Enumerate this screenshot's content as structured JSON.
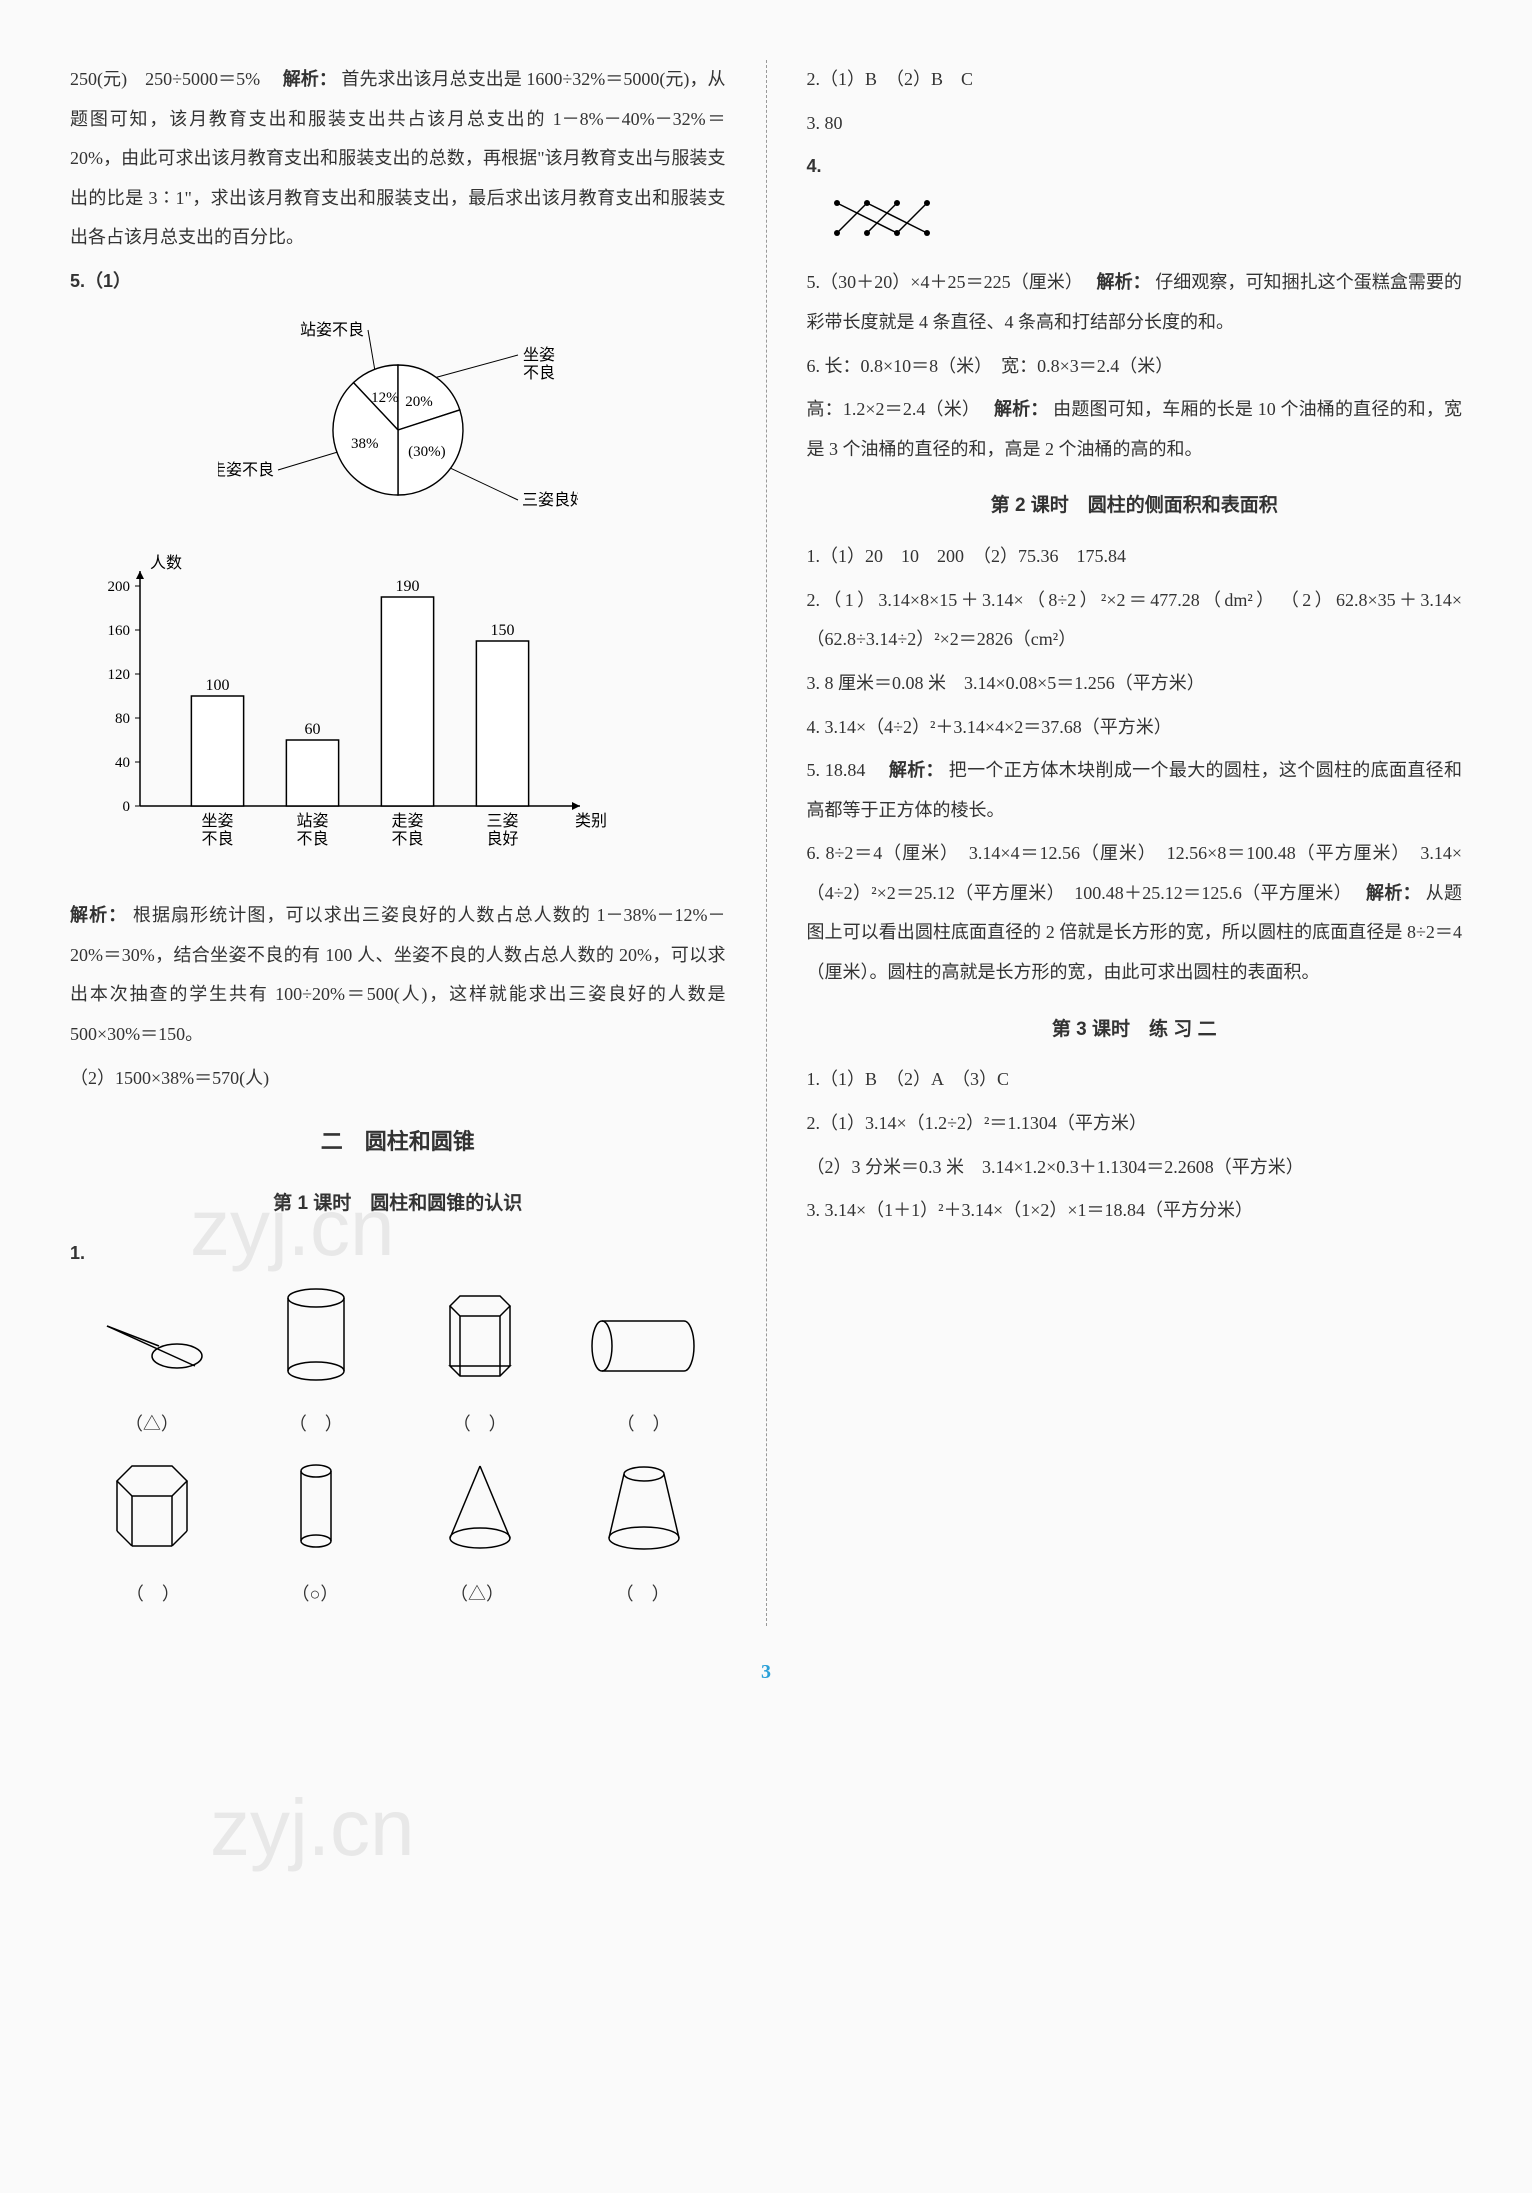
{
  "left": {
    "p1": "250(元)　250÷5000＝5%　",
    "p1_bold": "解析：",
    "p1_rest": "首先求出该月总支出是 1600÷32%＝5000(元)，从题图可知，该月教育支出和服装支出共占该月总支出的 1－8%－40%－32%＝20%，由此可求出该月教育支出和服装支出的总数，再根据\"该月教育支出与服装支出的比是 3∶1\"，求出该月教育支出和服装支出，最后求出该月教育支出和服装支出各占该月总支出的百分比。",
    "q5": "5.（1）",
    "pie": {
      "labels": {
        "zhan_bl": "站姿不良",
        "zuo_bl": "坐姿不良",
        "zou_bl": "走姿不良",
        "san_lh": "三姿良好"
      },
      "slices": [
        {
          "label": "站姿不良",
          "pct": "12%",
          "start": 90,
          "end": 133.2,
          "color": "#ffffff"
        },
        {
          "label": "坐姿不良",
          "pct": "20%",
          "start": 18,
          "end": 90,
          "color": "#ffffff"
        },
        {
          "label": "三姿良好",
          "pct": "(30%)",
          "start": -90,
          "end": 18,
          "color": "#ffffff"
        },
        {
          "label": "走姿不良",
          "pct": "38%",
          "start": 133.2,
          "end": 270,
          "color": "#ffffff"
        }
      ]
    },
    "bar": {
      "ylabel": "人数",
      "xlabel": "类别",
      "ymax": 200,
      "ystep": 40,
      "yticks": [
        0,
        40,
        80,
        120,
        160,
        200
      ],
      "categories": [
        "坐姿\n不良",
        "站姿\n不良",
        "走姿\n不良",
        "三姿\n良好"
      ],
      "values": [
        100,
        60,
        190,
        150
      ],
      "bar_color": "#ffffff",
      "bar_border": "#000000",
      "value_labels": [
        "100",
        "60",
        "190",
        "150"
      ]
    },
    "p_analysis_bold": "解析：",
    "p_analysis": "根据扇形统计图，可以求出三姿良好的人数占总人数的 1－38%－12%－20%＝30%，结合坐姿不良的有 100 人、坐姿不良的人数占总人数的 20%，可以求出本次抽查的学生共有 100÷20%＝500(人)，这样就能求出三姿良好的人数是 500×30%＝150。",
    "p_5_2": "（2）1500×38%＝570(人)",
    "heading_two": "二　圆柱和圆锥",
    "sub_lesson1": "第 1 课时　圆柱和圆锥的认识",
    "q1_label": "1.",
    "shape_answers_row1": [
      "（△）",
      "（　）",
      "（　）",
      "（　）"
    ],
    "shape_answers_row2": [
      "（　）",
      "（○）",
      "（△）",
      "（　）"
    ]
  },
  "right": {
    "l2": "2.（1）B　（2）B　C",
    "l3": "3. 80",
    "l4": "4.",
    "l5a": "5.（30＋20）×4＋25＝225（厘米）　",
    "l5_bold": "解析：",
    "l5b": "仔细观察，可知捆扎这个蛋糕盒需要的彩带长度就是 4 条直径、4 条高和打结部分长度的和。",
    "l6a": "6. 长：0.8×10＝8（米）　宽：0.8×3＝2.4（米）",
    "l6b": "高：1.2×2＝2.4（米）　",
    "l6_bold": "解析：",
    "l6c": "由题图可知，车厢的长是 10 个油桶的直径的和，宽是 3 个油桶的直径的和，高是 2 个油桶的高的和。",
    "sub_lesson2": "第 2 课时　圆柱的侧面积和表面积",
    "s2_1": "1.（1）20　10　200　（2）75.36　175.84",
    "s2_2": "2.（1）3.14×8×15＋3.14×（8÷2）²×2＝477.28（dm²）　（2）62.8×35＋3.14×（62.8÷3.14÷2）²×2＝2826（cm²）",
    "s2_3": "3. 8 厘米＝0.08 米　3.14×0.08×5＝1.256（平方米）",
    "s2_4": "4. 3.14×（4÷2）²＋3.14×4×2＝37.68（平方米）",
    "s2_5a": "5. 18.84　",
    "s2_5_bold": "解析：",
    "s2_5b": "把一个正方体木块削成一个最大的圆柱，这个圆柱的底面直径和高都等于正方体的棱长。",
    "s2_6a": "6. 8÷2＝4（厘米）　3.14×4＝12.56（厘米）　12.56×8＝100.48（平方厘米）　3.14×（4÷2）²×2＝25.12（平方厘米）　100.48＋25.12＝125.6（平方厘米）　",
    "s2_6_bold": "解析：",
    "s2_6b": "从题图上可以看出圆柱底面直径的 2 倍就是长方形的宽，所以圆柱的底面直径是 8÷2＝4（厘米）。圆柱的高就是长方形的宽，由此可求出圆柱的表面积。",
    "sub_lesson3": "第 3 课时　练 习 二",
    "s3_1": "1.（1）B　（2）A　（3）C",
    "s3_2": "2.（1）3.14×（1.2÷2）²＝1.1304（平方米）",
    "s3_2b": "（2）3 分米＝0.3 米　3.14×1.2×0.3＋1.1304＝2.2608（平方米）",
    "s3_3": "3. 3.14×（1＋1）²＋3.14×（1×2）×1＝18.84（平方分米）"
  },
  "page_number": "3",
  "watermark1": "zyj.cn",
  "watermark2": "zyj.cn"
}
